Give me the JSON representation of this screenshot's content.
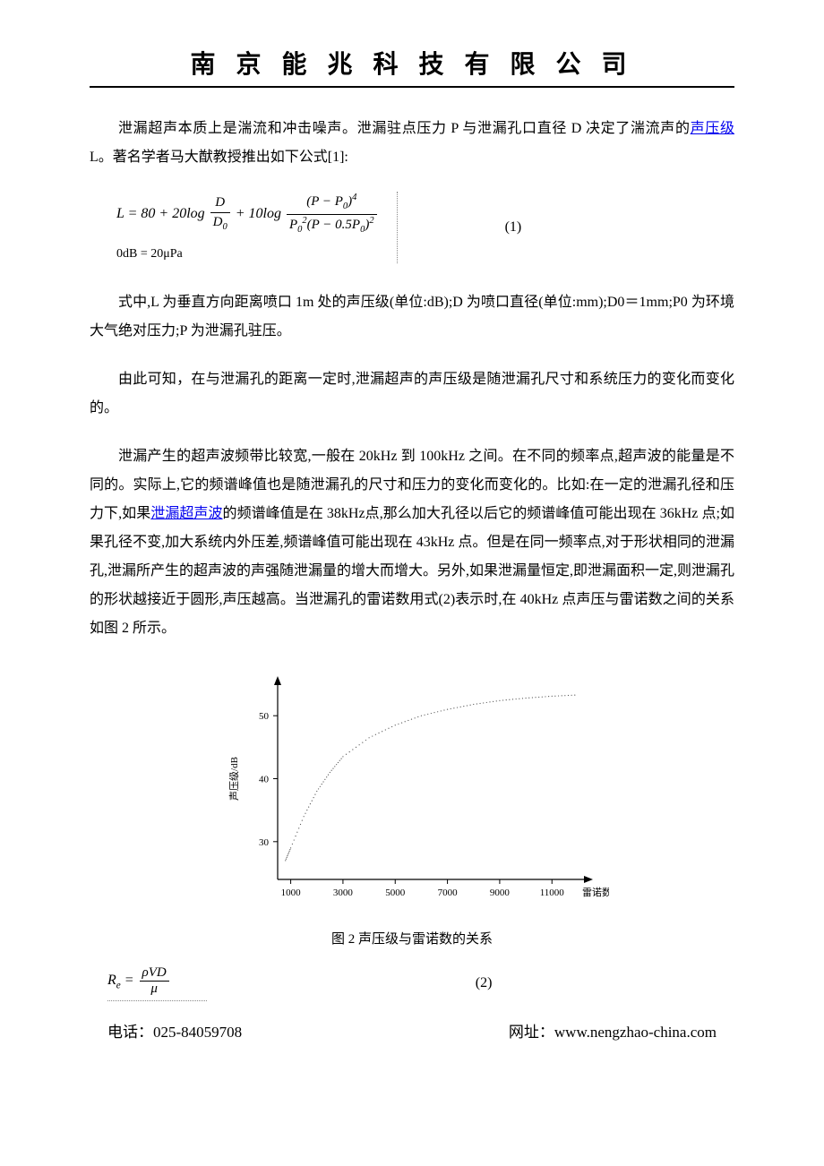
{
  "header": {
    "company_name": "南 京 能 兆 科 技 有 限 公 司"
  },
  "paragraphs": {
    "p1_a": "泄漏超声本质上是湍流和冲击噪声。泄漏驻点压力 P 与泄漏孔口直径 D 决定了湍流声的",
    "p1_link": "声压级",
    "p1_b": " L。著名学者马大猷教授推出如下公式[1]:",
    "p2": "式中,L 为垂直方向距离喷口 1m 处的声压级(单位:dB);D 为喷口直径(单位:mm);D0＝1mm;P0 为环境大气绝对压力;P 为泄漏孔驻压。",
    "p3": "由此可知，在与泄漏孔的距离一定时,泄漏超声的声压级是随泄漏孔尺寸和系统压力的变化而变化的。",
    "p4_a": "泄漏产生的超声波频带比较宽,一般在 20kHz 到 100kHz 之间。在不同的频率点,超声波的能量是不同的。实际上,它的频谱峰值也是随泄漏孔的尺寸和压力的变化而变化的。比如:在一定的泄漏孔径和压力下,如果",
    "p4_link": "泄漏超声波",
    "p4_b": "的频谱峰值是在 38kHz点,那么加大孔径以后它的频谱峰值可能出现在 36kHz 点;如果孔径不变,加大系统内外压差,频谱峰值可能出现在 43kHz 点。但是在同一频率点,对于形状相同的泄漏孔,泄漏所产生的超声波的声强随泄漏量的增大而增大。另外,如果泄漏量恒定,即泄漏面积一定,则泄漏孔的形状越接近于圆形,声压越高。当泄漏孔的雷诺数用式(2)表示时,在 40kHz 点声压与雷诺数之间的关系如图 2 所示。"
  },
  "equation1": {
    "prefix": "L = 80 + 20log",
    "frac1_num": "D",
    "frac1_den": "D",
    "frac1_den_sub": "0",
    "middle": " + 10log",
    "frac2_num_a": "(P − P",
    "frac2_num_b": ")",
    "frac2_num_exp": "4",
    "frac2_den_a": "P",
    "frac2_den_b": "(P − 0.5P",
    "frac2_den_c": ")",
    "sub_line": "0dB = 20μPa",
    "number": "(1)"
  },
  "figure2": {
    "caption": "图 2  声压级与雷诺数的关系",
    "chart": {
      "type": "line",
      "y_label": "声压级/dB",
      "x_label": "雷诺数 Re",
      "x_ticks": [
        1000,
        3000,
        5000,
        7000,
        9000,
        11000
      ],
      "y_ticks": [
        30,
        40,
        50
      ],
      "xlim": [
        500,
        12500
      ],
      "ylim": [
        24,
        56
      ],
      "line_color": "#555555",
      "axis_color": "#000000",
      "tick_fontsize": 11,
      "label_fontsize": 11,
      "background_color": "#ffffff",
      "data_points": [
        {
          "x": 800,
          "y": 27
        },
        {
          "x": 1000,
          "y": 29
        },
        {
          "x": 1500,
          "y": 34
        },
        {
          "x": 2000,
          "y": 38
        },
        {
          "x": 2500,
          "y": 41
        },
        {
          "x": 3000,
          "y": 43.5
        },
        {
          "x": 4000,
          "y": 46.5
        },
        {
          "x": 5000,
          "y": 48.5
        },
        {
          "x": 6000,
          "y": 50
        },
        {
          "x": 7000,
          "y": 51
        },
        {
          "x": 8000,
          "y": 51.8
        },
        {
          "x": 9000,
          "y": 52.4
        },
        {
          "x": 10000,
          "y": 52.8
        },
        {
          "x": 11000,
          "y": 53.1
        },
        {
          "x": 12000,
          "y": 53.3
        }
      ]
    }
  },
  "equation2": {
    "lhs": "R",
    "lhs_sub": "e",
    "eq": " = ",
    "num": "ρVD",
    "den": "μ",
    "number": "(2)"
  },
  "footer": {
    "phone_label": "电话：",
    "phone": "025-84059708",
    "web_label": "网址：",
    "web": "www.nengzhao-china.com"
  }
}
